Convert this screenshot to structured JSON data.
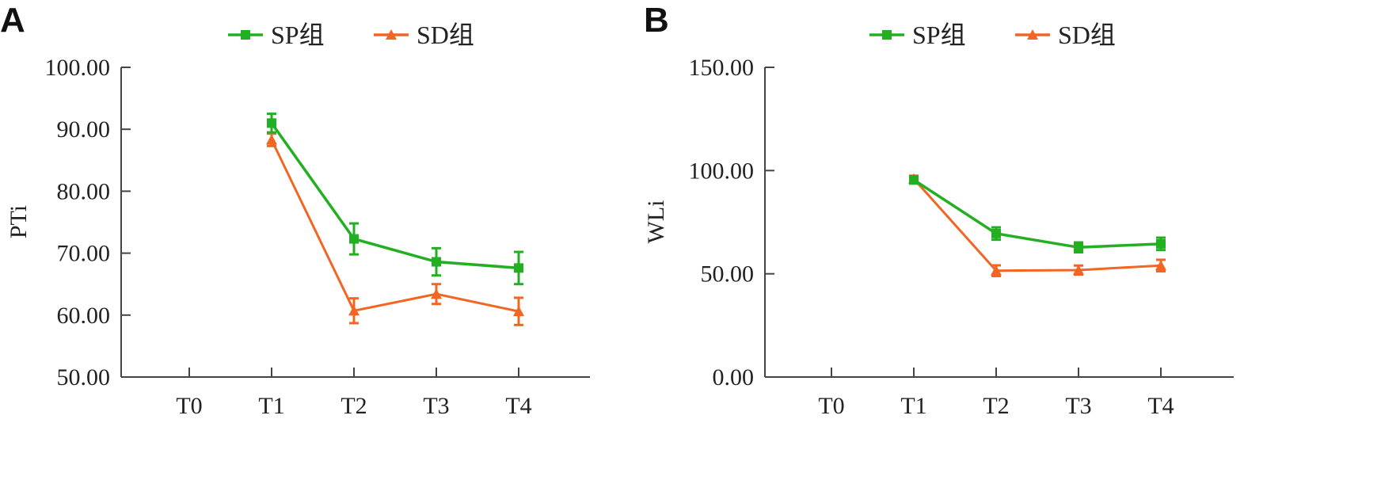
{
  "chart_data": [
    {
      "type": "line",
      "panel": "A",
      "ylabel": "PTi",
      "ylim": [
        50,
        100
      ],
      "yticks": [
        "50.00",
        "60.00",
        "70.00",
        "80.00",
        "90.00",
        "100.00"
      ],
      "categories": [
        "T0",
        "T1",
        "T2",
        "T3",
        "T4"
      ],
      "series": [
        {
          "name": "SP组",
          "color": "#22b022",
          "marker": "square",
          "values": [
            null,
            91.0,
            72.3,
            68.6,
            67.6
          ],
          "errors": [
            null,
            1.5,
            2.5,
            2.2,
            2.6
          ]
        },
        {
          "name": "SD组",
          "color": "#f26522",
          "marker": "triangle",
          "values": [
            null,
            88.3,
            60.7,
            63.4,
            60.6
          ],
          "errors": [
            null,
            1.0,
            2.0,
            1.6,
            2.2
          ]
        }
      ]
    },
    {
      "type": "line",
      "panel": "B",
      "ylabel": "WLi",
      "ylim": [
        0,
        150
      ],
      "yticks": [
        "0.00",
        "50.00",
        "100.00",
        "150.00"
      ],
      "categories": [
        "T0",
        "T1",
        "T2",
        "T3",
        "T4"
      ],
      "series": [
        {
          "name": "SP组",
          "color": "#22b022",
          "marker": "square",
          "values": [
            null,
            95.5,
            69.5,
            62.8,
            64.5
          ],
          "errors": [
            null,
            1.8,
            3.0,
            2.4,
            3.0
          ]
        },
        {
          "name": "SD组",
          "color": "#f26522",
          "marker": "triangle",
          "values": [
            null,
            96.0,
            51.5,
            51.8,
            54.0
          ],
          "errors": [
            null,
            1.5,
            2.6,
            2.2,
            2.8
          ]
        }
      ]
    }
  ]
}
